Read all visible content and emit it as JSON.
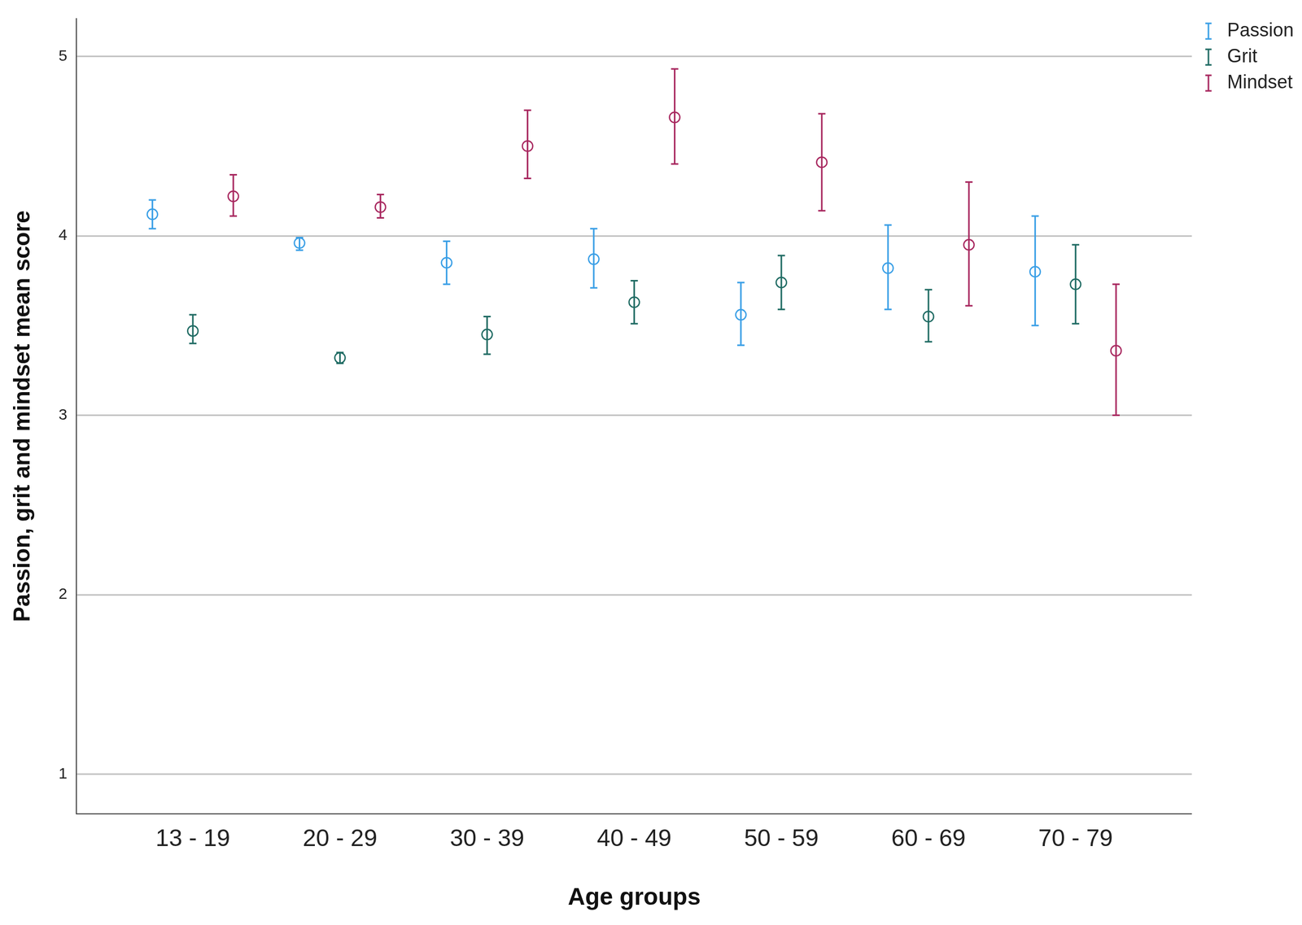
{
  "chart_data": {
    "type": "scatter",
    "x_label": "Age groups",
    "y_label": "Passion, grit and mindset mean score",
    "categories": [
      "13 - 19",
      "20 - 29",
      "30 - 39",
      "40 - 49",
      "50 - 59",
      "60 - 69",
      "70 - 79"
    ],
    "series": [
      {
        "name": "Passion",
        "color": "#3a9fe6",
        "marker": "open_circle",
        "values": [
          4.12,
          3.96,
          3.85,
          3.87,
          3.56,
          3.82,
          3.8
        ],
        "error_low": [
          4.04,
          3.92,
          3.73,
          3.71,
          3.39,
          3.59,
          3.5
        ],
        "error_high": [
          4.2,
          3.99,
          3.97,
          4.04,
          3.74,
          4.06,
          4.11
        ]
      },
      {
        "name": "Grit",
        "color": "#1f6b63",
        "marker": "open_circle",
        "values": [
          3.47,
          3.32,
          3.45,
          3.63,
          3.74,
          3.55,
          3.73
        ],
        "error_low": [
          3.4,
          3.29,
          3.34,
          3.51,
          3.59,
          3.41,
          3.51
        ],
        "error_high": [
          3.56,
          3.35,
          3.55,
          3.75,
          3.89,
          3.7,
          3.95
        ]
      },
      {
        "name": "Mindset",
        "color": "#a8285f",
        "marker": "open_circle",
        "values": [
          4.22,
          4.16,
          4.5,
          4.66,
          4.41,
          3.95,
          3.36
        ],
        "error_low": [
          4.11,
          4.1,
          4.32,
          4.4,
          4.14,
          3.61,
          3.0
        ],
        "error_high": [
          4.34,
          4.23,
          4.7,
          4.93,
          4.68,
          4.3,
          3.73
        ]
      }
    ],
    "ylim": [
      0.78,
      5.21
    ],
    "yticks": [
      1,
      2,
      3,
      4,
      5
    ],
    "grid": true,
    "legend": "top-right"
  }
}
